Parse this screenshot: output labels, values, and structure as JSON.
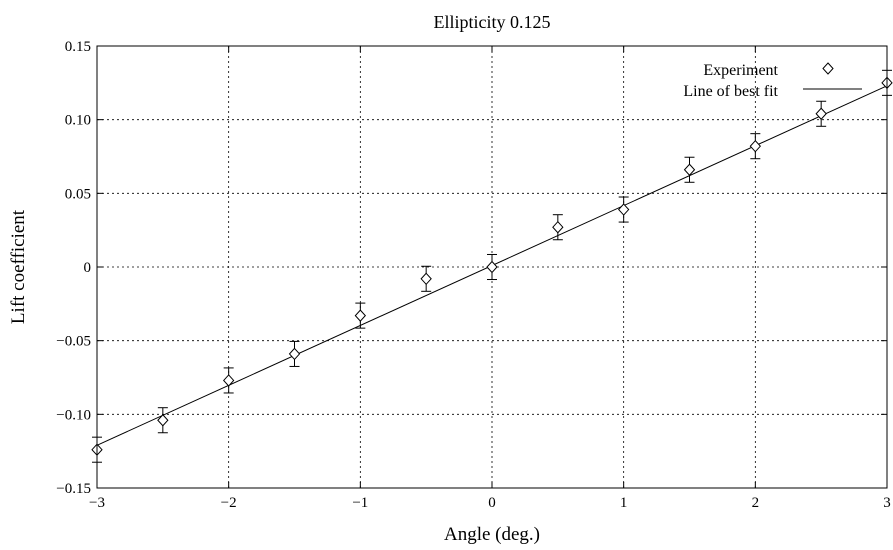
{
  "chart_data": {
    "type": "scatter",
    "title": "Ellipticity 0.125",
    "xlabel": "Angle (deg.)",
    "ylabel": "Lift coefficient",
    "xlim": [
      -3,
      3
    ],
    "ylim": [
      -0.15,
      0.15
    ],
    "grid": true,
    "legend_position": "top-right",
    "x_ticks": [
      -3,
      -2,
      -1,
      0,
      1,
      2,
      3
    ],
    "x_tick_labels": [
      "−3",
      "−2",
      "−1",
      "0",
      "1",
      "2",
      "3"
    ],
    "y_ticks": [
      -0.15,
      -0.1,
      -0.05,
      0,
      0.05,
      0.1,
      0.15
    ],
    "y_tick_labels": [
      "−0.15",
      "−0.10",
      "−0.05",
      "0",
      "0.05",
      "0.10",
      "0.15"
    ],
    "series": [
      {
        "name": "Experiment",
        "marker": "diamond",
        "x": [
          -3,
          -2.5,
          -2,
          -1.5,
          -1,
          -0.5,
          0,
          0.5,
          1,
          1.5,
          2,
          2.5,
          3
        ],
        "y": [
          -0.124,
          -0.104,
          -0.077,
          -0.059,
          -0.033,
          -0.008,
          0.0,
          0.027,
          0.039,
          0.066,
          0.082,
          0.104,
          0.125
        ],
        "error": [
          0.0085,
          0.0085,
          0.0085,
          0.0085,
          0.0085,
          0.0085,
          0.0085,
          0.0085,
          0.0085,
          0.0085,
          0.0085,
          0.0085,
          0.0085
        ]
      },
      {
        "name": "Line of best fit",
        "marker": "line",
        "x": [
          -3,
          3
        ],
        "y": [
          -0.121,
          0.123
        ]
      }
    ]
  }
}
